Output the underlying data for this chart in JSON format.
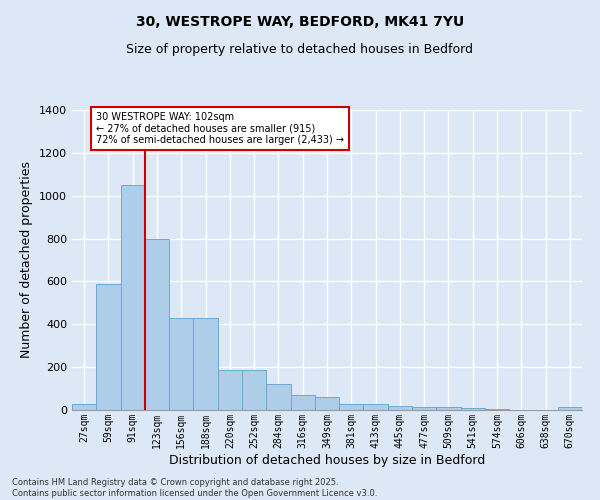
{
  "title_line1": "30, WESTROPE WAY, BEDFORD, MK41 7YU",
  "title_line2": "Size of property relative to detached houses in Bedford",
  "xlabel": "Distribution of detached houses by size in Bedford",
  "ylabel": "Number of detached properties",
  "categories": [
    "27sqm",
    "59sqm",
    "91sqm",
    "123sqm",
    "156sqm",
    "188sqm",
    "220sqm",
    "252sqm",
    "284sqm",
    "316sqm",
    "349sqm",
    "381sqm",
    "413sqm",
    "445sqm",
    "477sqm",
    "509sqm",
    "541sqm",
    "574sqm",
    "606sqm",
    "638sqm",
    "670sqm"
  ],
  "values": [
    30,
    590,
    1050,
    800,
    430,
    430,
    185,
    185,
    120,
    70,
    60,
    30,
    30,
    18,
    15,
    12,
    8,
    5,
    2,
    2,
    15
  ],
  "bar_color": "#aecde8",
  "bar_edge_color": "#6aaad4",
  "background_color": "#dce8f5",
  "grid_color": "#ffffff",
  "annotation_text": "30 WESTROPE WAY: 102sqm\n← 27% of detached houses are smaller (915)\n72% of semi-detached houses are larger (2,433) →",
  "annotation_box_color": "#ffffff",
  "annotation_box_edge": "#cc0000",
  "vline_color": "#cc0000",
  "vline_x_pos": 2.5,
  "ylim": [
    0,
    1400
  ],
  "yticks": [
    0,
    200,
    400,
    600,
    800,
    1000,
    1200,
    1400
  ],
  "footnote": "Contains HM Land Registry data © Crown copyright and database right 2025.\nContains public sector information licensed under the Open Government Licence v3.0."
}
